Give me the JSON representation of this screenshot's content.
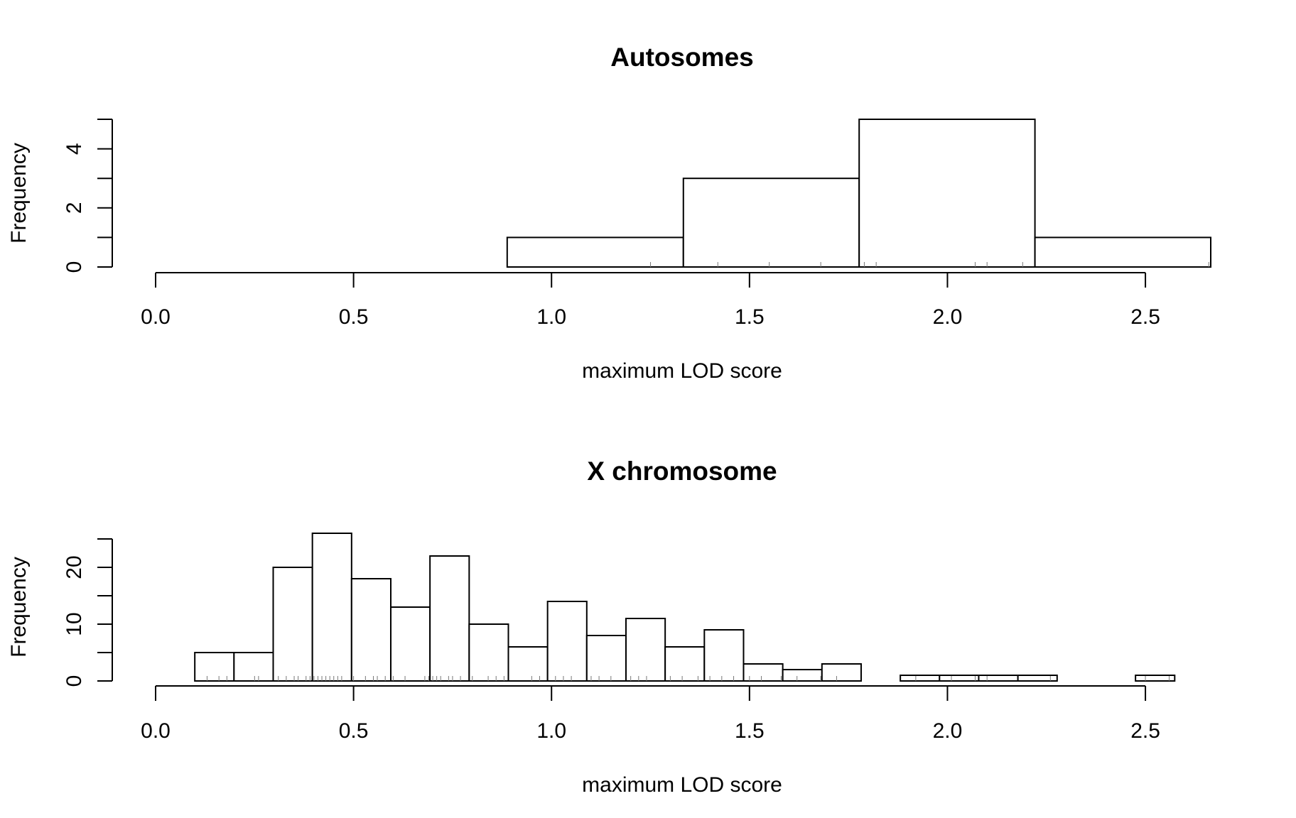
{
  "chart_data": [
    {
      "type": "histogram",
      "title": "Autosomes",
      "xlabel": "maximum LOD score",
      "ylabel": "Frequency",
      "bin_edges": [
        0.0,
        0.444,
        0.888,
        1.333,
        1.777,
        2.221,
        2.665
      ],
      "counts": [
        0,
        0,
        1,
        3,
        5,
        1
      ],
      "ylim": [
        0,
        5
      ],
      "yticks": [
        0,
        1,
        2,
        3,
        4,
        5
      ],
      "ytick_labels": [
        "0",
        "",
        "2",
        "",
        "4",
        ""
      ],
      "xlim": [
        0,
        2.665
      ],
      "xticks": [
        0.0,
        0.5,
        1.0,
        1.5,
        2.0,
        2.5
      ],
      "xtick_labels": [
        "0.0",
        "0.5",
        "1.0",
        "1.5",
        "2.0",
        "2.5"
      ],
      "rug": [
        1.25,
        1.42,
        1.55,
        1.68,
        1.79,
        1.82,
        2.07,
        2.1,
        2.19,
        2.66
      ]
    },
    {
      "type": "histogram",
      "title": "X chromosome",
      "xlabel": "maximum LOD score",
      "ylabel": "Frequency",
      "bin_edges": [
        0.0,
        0.099,
        0.198,
        0.297,
        0.396,
        0.495,
        0.594,
        0.693,
        0.792,
        0.891,
        0.99,
        1.089,
        1.188,
        1.287,
        1.386,
        1.485,
        1.584,
        1.683,
        1.782,
        1.881,
        1.98,
        2.079,
        2.178,
        2.277,
        2.376,
        2.475,
        2.574,
        2.665
      ],
      "counts": [
        0,
        5,
        5,
        20,
        26,
        18,
        13,
        22,
        10,
        6,
        14,
        8,
        11,
        6,
        9,
        3,
        2,
        3,
        0,
        1,
        1,
        1,
        1,
        0,
        0,
        1,
        0
      ],
      "ylim": [
        0,
        25
      ],
      "yticks": [
        0,
        5,
        10,
        15,
        20,
        25
      ],
      "ytick_labels": [
        "0",
        "",
        "10",
        "",
        "20",
        ""
      ],
      "xlim": [
        0,
        2.665
      ],
      "xticks": [
        0.0,
        0.5,
        1.0,
        1.5,
        2.0,
        2.5
      ],
      "xtick_labels": [
        "0.0",
        "0.5",
        "1.0",
        "1.5",
        "2.0",
        "2.5"
      ],
      "rug": [
        0.13,
        0.16,
        0.18,
        0.25,
        0.26,
        0.31,
        0.33,
        0.35,
        0.36,
        0.38,
        0.39,
        0.4,
        0.41,
        0.42,
        0.43,
        0.44,
        0.45,
        0.46,
        0.47,
        0.5,
        0.53,
        0.55,
        0.56,
        0.58,
        0.6,
        0.63,
        0.68,
        0.69,
        0.7,
        0.71,
        0.72,
        0.74,
        0.75,
        0.77,
        0.8,
        0.84,
        0.86,
        0.88,
        0.95,
        0.97,
        1.01,
        1.03,
        1.05,
        1.1,
        1.12,
        1.15,
        1.2,
        1.22,
        1.24,
        1.3,
        1.33,
        1.37,
        1.4,
        1.43,
        1.46,
        1.5,
        1.53,
        1.58,
        1.62,
        1.68,
        1.72,
        1.92,
        2.01,
        2.07,
        2.1,
        2.26,
        2.5,
        2.56
      ]
    }
  ]
}
